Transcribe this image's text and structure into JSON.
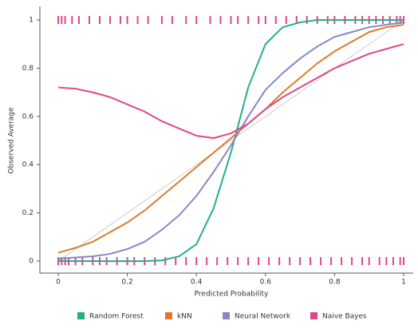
{
  "chart_data": {
    "type": "line",
    "x_label": "Predicted Probability",
    "y_label": "Observed Average",
    "x": [
      0,
      0.05,
      0.1,
      0.15,
      0.2,
      0.25,
      0.3,
      0.35,
      0.4,
      0.45,
      0.5,
      0.55,
      0.6,
      0.65,
      0.7,
      0.75,
      0.8,
      0.85,
      0.9,
      0.95,
      1
    ],
    "series": [
      {
        "name": "Random Forest",
        "color": "#22b08a",
        "values": [
          0,
          0,
          0,
          0,
          0,
          0,
          0.003,
          0.02,
          0.07,
          0.22,
          0.45,
          0.72,
          0.9,
          0.97,
          0.99,
          1,
          1,
          1,
          1,
          1,
          1
        ]
      },
      {
        "name": "kNN",
        "color": "#e07a2a",
        "values": [
          0.035,
          0.055,
          0.08,
          0.12,
          0.16,
          0.21,
          0.27,
          0.33,
          0.39,
          0.45,
          0.51,
          0.57,
          0.63,
          0.7,
          0.76,
          0.82,
          0.87,
          0.91,
          0.95,
          0.97,
          0.98
        ]
      },
      {
        "name": "Neural Network",
        "color": "#8a86c8",
        "values": [
          0.01,
          0.015,
          0.02,
          0.03,
          0.05,
          0.08,
          0.13,
          0.19,
          0.27,
          0.37,
          0.48,
          0.6,
          0.71,
          0.78,
          0.84,
          0.89,
          0.93,
          0.95,
          0.97,
          0.98,
          0.99
        ]
      },
      {
        "name": "Naive Bayes",
        "color": "#e0468a",
        "values": [
          0.72,
          0.715,
          0.7,
          0.68,
          0.65,
          0.62,
          0.58,
          0.55,
          0.52,
          0.51,
          0.53,
          0.57,
          0.63,
          0.68,
          0.72,
          0.76,
          0.8,
          0.83,
          0.86,
          0.88,
          0.9
        ]
      }
    ],
    "rug_color": "#e0468a",
    "rug_top": [
      0,
      0.01,
      0.02,
      0.04,
      0.06,
      0.09,
      0.12,
      0.15,
      0.18,
      0.2,
      0.23,
      0.26,
      0.3,
      0.33,
      0.37,
      0.4,
      0.44,
      0.47,
      0.5,
      0.52,
      0.55,
      0.58,
      0.6,
      0.63,
      0.66,
      0.69,
      0.72,
      0.75,
      0.78,
      0.8,
      0.83,
      0.86,
      0.88,
      0.9,
      0.92,
      0.94,
      0.96,
      0.98,
      0.99,
      1
    ],
    "rug_bottom": [
      0,
      0.01,
      0.02,
      0.03,
      0.05,
      0.07,
      0.1,
      0.12,
      0.14,
      0.17,
      0.2,
      0.22,
      0.25,
      0.28,
      0.31,
      0.34,
      0.37,
      0.4,
      0.43,
      0.46,
      0.49,
      0.52,
      0.55,
      0.58,
      0.61,
      0.64,
      0.67,
      0.7,
      0.73,
      0.76,
      0.79,
      0.82,
      0.85,
      0.88,
      0.9,
      0.93,
      0.95,
      0.97,
      0.99,
      1
    ],
    "diagonal": true,
    "xlim": [
      0,
      1
    ],
    "ylim": [
      0,
      1
    ],
    "xticks": [
      0,
      0.2,
      0.4,
      0.6,
      0.8,
      1
    ],
    "yticks": [
      0,
      0.2,
      0.4,
      0.6,
      0.8,
      1
    ],
    "legend": "bottom"
  }
}
